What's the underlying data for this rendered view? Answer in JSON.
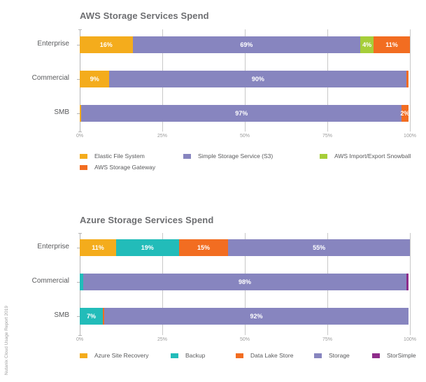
{
  "side_note": "Nutanix Cloud Usage Report 2019",
  "chart_data": [
    {
      "type": "bar",
      "orientation": "horizontal",
      "stacked": true,
      "title": "AWS Storage Services Spend",
      "categories": [
        "Enterprise",
        "Commercial",
        "SMB"
      ],
      "xlabel": "",
      "ylabel": "",
      "xlim": [
        0,
        100
      ],
      "x_ticks": [
        "0%",
        "25%",
        "50%",
        "75%",
        "100%"
      ],
      "grid": true,
      "legend_position": "bottom",
      "series": [
        {
          "name": "Elastic File System",
          "color": "#f4ac1c",
          "values": [
            16,
            9,
            0.5
          ],
          "labels": [
            "16%",
            "9%",
            ""
          ]
        },
        {
          "name": "Simple Storage Service (S3)",
          "color": "#8785bf",
          "values": [
            69,
            90,
            97
          ],
          "labels": [
            "69%",
            "90%",
            "97%"
          ]
        },
        {
          "name": "AWS Import/Export Snowball",
          "color": "#a6ce39",
          "values": [
            4,
            0,
            0
          ],
          "labels": [
            "4%",
            "",
            ""
          ]
        },
        {
          "name": "AWS Storage Gateway",
          "color": "#f26d21",
          "values": [
            11,
            0.5,
            2
          ],
          "labels": [
            "11%",
            "",
            "2%"
          ]
        }
      ]
    },
    {
      "type": "bar",
      "orientation": "horizontal",
      "stacked": true,
      "title": "Azure Storage Services Spend",
      "categories": [
        "Enterprise",
        "Commercial",
        "SMB"
      ],
      "xlabel": "",
      "ylabel": "",
      "xlim": [
        0,
        100
      ],
      "x_ticks": [
        "0%",
        "25%",
        "50%",
        "75%",
        "100%"
      ],
      "grid": true,
      "legend_position": "bottom",
      "series": [
        {
          "name": "Azure Site Recovery",
          "color": "#f4ac1c",
          "values": [
            11,
            0,
            0
          ],
          "labels": [
            "11%",
            "",
            ""
          ]
        },
        {
          "name": "Backup",
          "color": "#22bcb9",
          "values": [
            19,
            1,
            7
          ],
          "labels": [
            "19%",
            "",
            "7%"
          ]
        },
        {
          "name": "Data Lake Store",
          "color": "#f26d21",
          "values": [
            15,
            0,
            0.5
          ],
          "labels": [
            "15%",
            "",
            ""
          ]
        },
        {
          "name": "Storage",
          "color": "#8785bf",
          "values": [
            55,
            98,
            92
          ],
          "labels": [
            "55%",
            "98%",
            "92%"
          ]
        },
        {
          "name": "StorSimple",
          "color": "#8e2c8a",
          "values": [
            0,
            0.5,
            0
          ],
          "labels": [
            "",
            "",
            ""
          ]
        }
      ]
    }
  ]
}
